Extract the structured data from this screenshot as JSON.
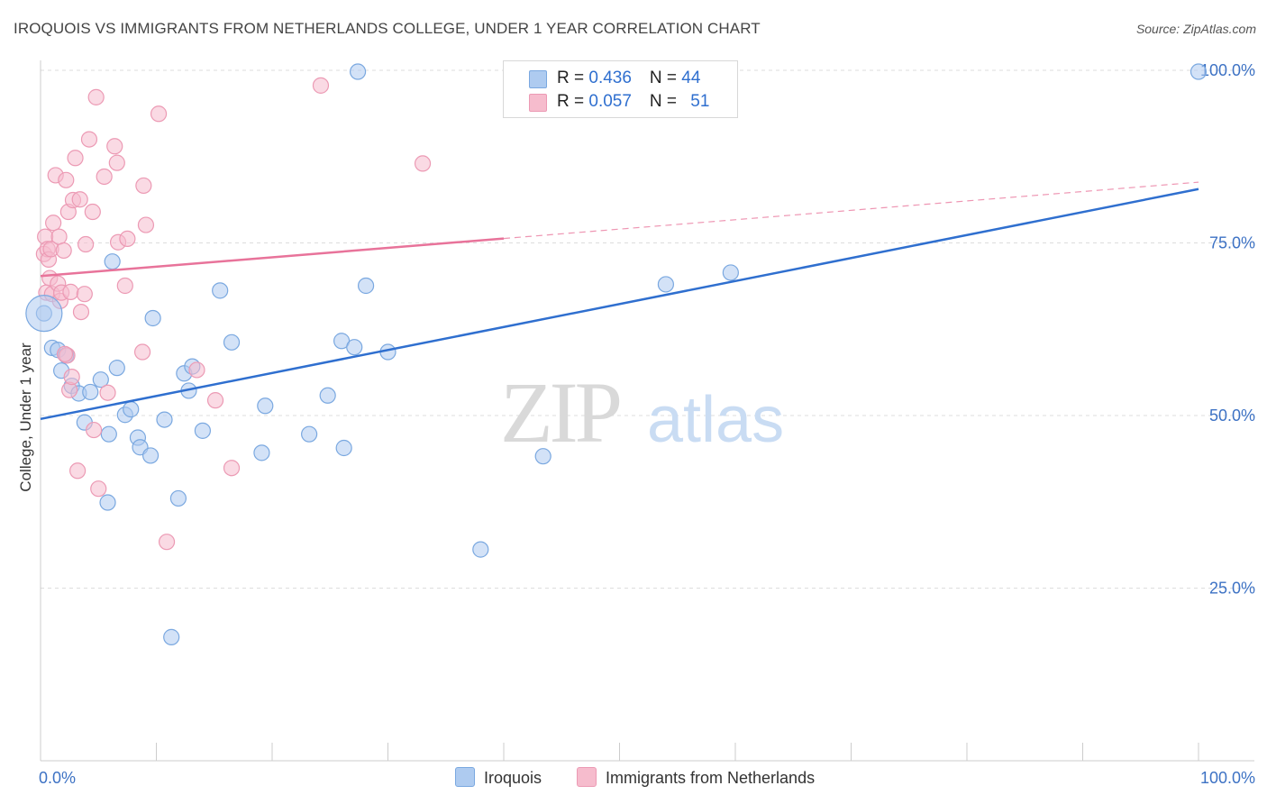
{
  "header": {
    "title": "IROQUOIS VS IMMIGRANTS FROM NETHERLANDS COLLEGE, UNDER 1 YEAR CORRELATION CHART",
    "source": "Source: ZipAtlas.com"
  },
  "legend_top": {
    "rows": [
      {
        "r_label": "R = ",
        "r_value": "0.436",
        "n_label": "N = ",
        "n_value": "44"
      },
      {
        "r_label": "R = ",
        "r_value": "0.057",
        "n_label": "N = ",
        "n_value": "51"
      }
    ]
  },
  "watermark": {
    "zip": "ZIP",
    "atlas": "atlas"
  },
  "colors": {
    "iroquois_fill": "#aecbf0",
    "iroquois_stroke": "#7aa8e0",
    "iroquois_line": "#2f6fcf",
    "neth_fill": "#f6bccd",
    "neth_stroke": "#ec9ab4",
    "neth_line": "#e8739a",
    "grid": "#dddddd",
    "axis_text": "#3d72c4"
  },
  "chart_data": {
    "type": "scatter",
    "title": "IROQUOIS VS IMMIGRANTS FROM NETHERLANDS COLLEGE, UNDER 1 YEAR CORRELATION CHART",
    "xlabel": "",
    "ylabel": "College, Under 1 year",
    "xlim": [
      0,
      100
    ],
    "ylim": [
      0,
      100
    ],
    "x_tick_labels": [
      "0.0%",
      "100.0%"
    ],
    "y_tick_labels": [
      "25.0%",
      "50.0%",
      "75.0%",
      "100.0%"
    ],
    "y_ticks": [
      25,
      50,
      75,
      100
    ],
    "grid": true,
    "legend": "top-center",
    "series": [
      {
        "name": "Iroquois",
        "R": 0.436,
        "N": 44,
        "trend": {
          "x": [
            0,
            100
          ],
          "y": [
            49.5,
            82.8
          ],
          "dashed_from": null
        },
        "points": [
          [
            0.3,
            64.8
          ],
          [
            1.0,
            59.8
          ],
          [
            1.5,
            59.5
          ],
          [
            1.8,
            56.5
          ],
          [
            2.2,
            58.7
          ],
          [
            2.7,
            54.3
          ],
          [
            3.3,
            53.2
          ],
          [
            3.8,
            49.0
          ],
          [
            4.3,
            53.4
          ],
          [
            5.2,
            55.2
          ],
          [
            5.8,
            37.4
          ],
          [
            5.9,
            47.3
          ],
          [
            6.2,
            72.3
          ],
          [
            6.6,
            56.9
          ],
          [
            7.3,
            50.1
          ],
          [
            7.8,
            50.9
          ],
          [
            8.4,
            46.8
          ],
          [
            8.6,
            45.4
          ],
          [
            9.5,
            44.2
          ],
          [
            9.7,
            64.1
          ],
          [
            10.7,
            49.4
          ],
          [
            11.3,
            17.9
          ],
          [
            11.9,
            38.0
          ],
          [
            12.4,
            56.1
          ],
          [
            12.8,
            53.6
          ],
          [
            13.1,
            57.1
          ],
          [
            14.0,
            47.8
          ],
          [
            15.5,
            68.1
          ],
          [
            16.5,
            60.6
          ],
          [
            19.1,
            44.6
          ],
          [
            19.4,
            51.4
          ],
          [
            23.2,
            47.3
          ],
          [
            24.8,
            52.9
          ],
          [
            26.0,
            60.8
          ],
          [
            26.2,
            45.3
          ],
          [
            27.1,
            59.9
          ],
          [
            27.4,
            99.8
          ],
          [
            28.1,
            68.8
          ],
          [
            30.0,
            59.2
          ],
          [
            38.0,
            30.6
          ],
          [
            43.4,
            44.1
          ],
          [
            54.0,
            69.0
          ],
          [
            59.6,
            70.7
          ],
          [
            100.0,
            99.8
          ]
        ]
      },
      {
        "name": "Immigrants from Netherlands",
        "R": 0.057,
        "N": 51,
        "trend": {
          "x": [
            0,
            100
          ],
          "y": [
            70.2,
            83.8
          ],
          "dashed_from": 40
        },
        "points": [
          [
            0.3,
            73.4
          ],
          [
            0.4,
            75.9
          ],
          [
            0.5,
            67.8
          ],
          [
            0.6,
            74.1
          ],
          [
            0.7,
            72.6
          ],
          [
            0.8,
            69.9
          ],
          [
            0.9,
            74.1
          ],
          [
            1.0,
            67.6
          ],
          [
            1.1,
            77.9
          ],
          [
            1.3,
            84.8
          ],
          [
            1.5,
            69.1
          ],
          [
            1.6,
            75.9
          ],
          [
            1.7,
            66.6
          ],
          [
            1.8,
            67.8
          ],
          [
            2.0,
            73.9
          ],
          [
            2.2,
            84.1
          ],
          [
            2.3,
            58.7
          ],
          [
            2.4,
            79.5
          ],
          [
            2.5,
            53.7
          ],
          [
            2.6,
            67.9
          ],
          [
            2.7,
            55.6
          ],
          [
            2.8,
            81.2
          ],
          [
            3.0,
            87.3
          ],
          [
            3.2,
            42.0
          ],
          [
            3.4,
            81.3
          ],
          [
            3.5,
            65.0
          ],
          [
            3.8,
            67.6
          ],
          [
            3.9,
            74.8
          ],
          [
            4.2,
            90.0
          ],
          [
            4.5,
            79.5
          ],
          [
            4.6,
            47.9
          ],
          [
            4.8,
            96.1
          ],
          [
            5.0,
            39.4
          ],
          [
            5.5,
            84.6
          ],
          [
            5.8,
            53.3
          ],
          [
            6.4,
            89.0
          ],
          [
            6.6,
            86.6
          ],
          [
            6.7,
            75.1
          ],
          [
            7.3,
            68.8
          ],
          [
            7.5,
            75.6
          ],
          [
            8.8,
            59.2
          ],
          [
            8.9,
            83.3
          ],
          [
            9.1,
            77.6
          ],
          [
            10.2,
            93.7
          ],
          [
            10.9,
            31.7
          ],
          [
            13.5,
            56.6
          ],
          [
            15.1,
            52.2
          ],
          [
            16.5,
            42.4
          ],
          [
            24.2,
            97.8
          ],
          [
            33.0,
            86.5
          ],
          [
            2.1,
            58.9
          ]
        ]
      }
    ]
  },
  "bottom_legend": [
    {
      "label": "Iroquois"
    },
    {
      "label": "Immigrants from Netherlands"
    }
  ]
}
